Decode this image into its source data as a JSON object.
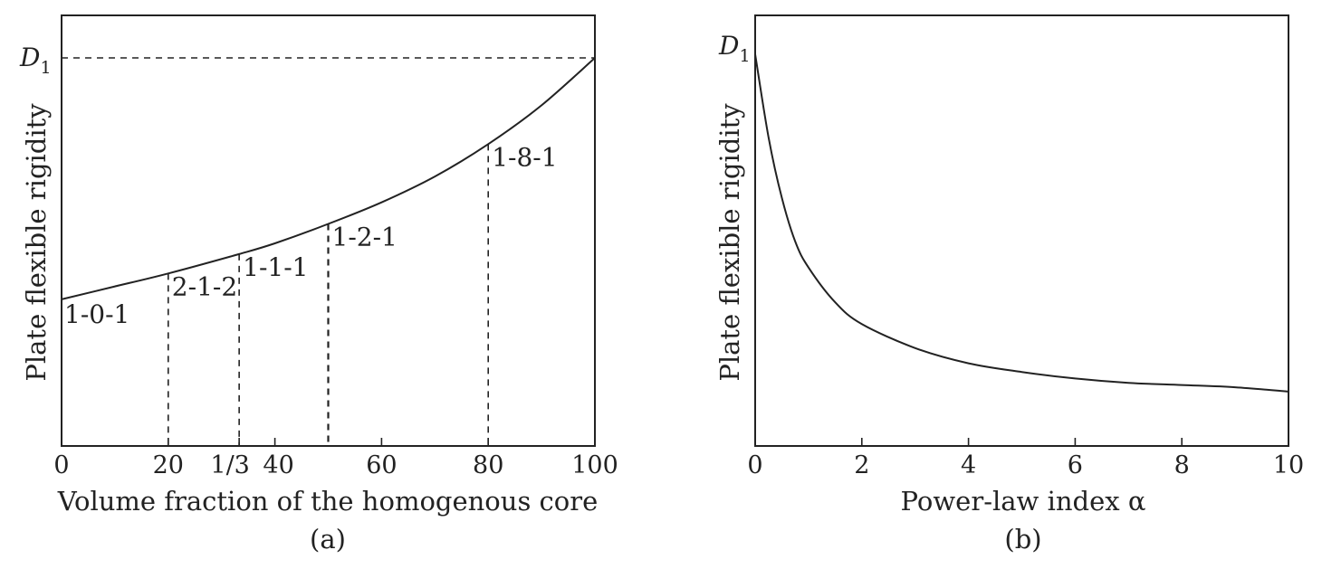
{
  "chart_data": [
    {
      "type": "line",
      "caption": "(a)",
      "xlabel": "Volume fraction of the homogenous core",
      "ylabel": "Plate flexible rigidity",
      "xlim": [
        0,
        100
      ],
      "ylim": [
        0,
        1
      ],
      "y_tick_label_top": "D",
      "y_tick_label_top_sub": "1",
      "x_tick_labels": [
        "0",
        "20",
        "1/3",
        "40",
        "60",
        "80",
        "100"
      ],
      "x_ticks": [
        0,
        20,
        33.3,
        40,
        60,
        80,
        100
      ],
      "series": [
        {
          "x": [
            0,
            10,
            20,
            33.3,
            40,
            50,
            60,
            70,
            80,
            90,
            100
          ],
          "y": [
            0.34,
            0.37,
            0.4,
            0.445,
            0.47,
            0.515,
            0.565,
            0.625,
            0.7,
            0.79,
            0.9
          ]
        }
      ],
      "reference_line_y": 0.9,
      "annotations": [
        {
          "label": "1-0-1",
          "x": 0,
          "y": 0.34
        },
        {
          "label": "2-1-2",
          "x": 20,
          "y": 0.4
        },
        {
          "label": "1-1-1",
          "x": 33.3,
          "y": 0.445
        },
        {
          "label": "1-2-1",
          "x": 50,
          "y": 0.515
        },
        {
          "label": "1-8-1",
          "x": 80,
          "y": 0.7
        }
      ]
    },
    {
      "type": "line",
      "caption": "(b)",
      "xlabel": "Power-law index α",
      "ylabel": "Plate flexible rigidity",
      "xlim": [
        0,
        10
      ],
      "ylim": [
        0,
        1
      ],
      "y_tick_label_top": "D",
      "y_tick_label_top_sub": "1",
      "x_tick_labels": [
        "0",
        "2",
        "4",
        "6",
        "8",
        "10"
      ],
      "x_ticks": [
        0,
        2,
        4,
        6,
        8,
        10
      ],
      "series": [
        {
          "x": [
            0,
            0.25,
            0.5,
            0.75,
            1,
            1.5,
            2,
            3,
            4,
            5,
            6,
            7,
            8,
            9,
            10
          ],
          "y": [
            0.9,
            0.71,
            0.57,
            0.47,
            0.41,
            0.33,
            0.28,
            0.225,
            0.19,
            0.17,
            0.155,
            0.145,
            0.14,
            0.135,
            0.125
          ]
        }
      ]
    }
  ]
}
